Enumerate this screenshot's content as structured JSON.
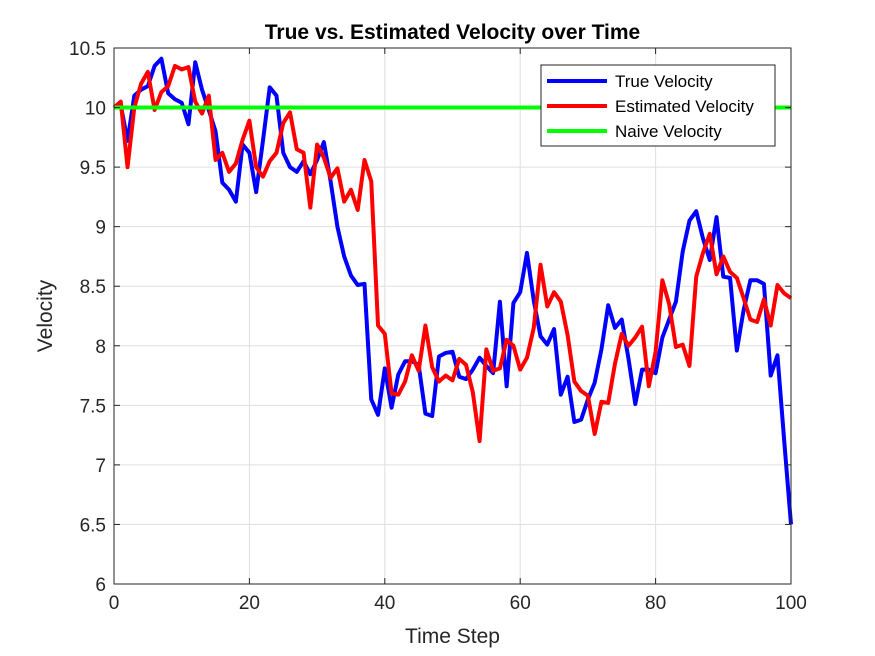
{
  "chart_data": {
    "type": "line",
    "title": "True vs. Estimated Velocity over Time",
    "xlabel": "Time Step",
    "ylabel": "Velocity",
    "xlim": [
      0,
      100
    ],
    "ylim": [
      6,
      10.5
    ],
    "x_ticks": [
      "0",
      "20",
      "40",
      "60",
      "80",
      "100"
    ],
    "y_ticks": [
      "6",
      "6.5",
      "7",
      "7.5",
      "8",
      "8.5",
      "9",
      "9.5",
      "10",
      "10.5"
    ],
    "grid": true,
    "legend_position": "top-right",
    "series": [
      {
        "name": "True Velocity",
        "color": "#0000ff",
        "x": [
          0,
          1,
          2,
          3,
          4,
          5,
          6,
          7,
          8,
          9,
          10,
          11,
          12,
          13,
          14,
          15,
          16,
          17,
          18,
          19,
          20,
          21,
          22,
          23,
          24,
          25,
          26,
          27,
          28,
          29,
          30,
          31,
          32,
          33,
          34,
          35,
          36,
          37,
          38,
          39,
          40,
          41,
          42,
          43,
          44,
          45,
          46,
          47,
          48,
          49,
          50,
          51,
          52,
          53,
          54,
          55,
          56,
          57,
          58,
          59,
          60,
          61,
          62,
          63,
          64,
          65,
          66,
          67,
          68,
          69,
          70,
          71,
          72,
          73,
          74,
          75,
          76,
          77,
          78,
          79,
          80,
          81,
          82,
          83,
          84,
          85,
          86,
          87,
          88,
          89,
          90,
          91,
          92,
          93,
          94,
          95,
          96,
          97,
          98,
          99,
          100
        ],
        "y": [
          10.0,
          10.02,
          9.72,
          10.1,
          10.15,
          10.18,
          10.35,
          10.41,
          10.12,
          10.07,
          10.04,
          9.86,
          10.38,
          10.15,
          9.98,
          9.8,
          9.37,
          9.31,
          9.21,
          9.69,
          9.62,
          9.29,
          9.72,
          10.17,
          10.1,
          9.62,
          9.5,
          9.46,
          9.55,
          9.44,
          9.56,
          9.71,
          9.38,
          9.0,
          8.75,
          8.59,
          8.51,
          8.52,
          7.55,
          7.42,
          7.81,
          7.48,
          7.76,
          7.87,
          7.87,
          7.84,
          7.43,
          7.41,
          7.91,
          7.94,
          7.95,
          7.74,
          7.72,
          7.8,
          7.9,
          7.83,
          7.77,
          8.37,
          7.66,
          8.36,
          8.45,
          8.78,
          8.38,
          8.08,
          8.01,
          8.14,
          7.59,
          7.74,
          7.36,
          7.38,
          7.55,
          7.69,
          7.97,
          8.34,
          8.15,
          8.22,
          7.89,
          7.51,
          7.8,
          7.8,
          7.77,
          8.07,
          8.22,
          8.37,
          8.79,
          9.05,
          9.13,
          8.9,
          8.72,
          9.08,
          8.58,
          8.57,
          7.96,
          8.3,
          8.55,
          8.55,
          8.52,
          7.75,
          7.92,
          7.2,
          6.5
        ]
      },
      {
        "name": "Estimated Velocity",
        "color": "#ff0000",
        "x": [
          0,
          1,
          2,
          3,
          4,
          5,
          6,
          7,
          8,
          9,
          10,
          11,
          12,
          13,
          14,
          15,
          16,
          17,
          18,
          19,
          20,
          21,
          22,
          23,
          24,
          25,
          26,
          27,
          28,
          29,
          30,
          31,
          32,
          33,
          34,
          35,
          36,
          37,
          38,
          39,
          40,
          41,
          42,
          43,
          44,
          45,
          46,
          47,
          48,
          49,
          50,
          51,
          52,
          53,
          54,
          55,
          56,
          57,
          58,
          59,
          60,
          61,
          62,
          63,
          64,
          65,
          66,
          67,
          68,
          69,
          70,
          71,
          72,
          73,
          74,
          75,
          76,
          77,
          78,
          79,
          80,
          81,
          82,
          83,
          84,
          85,
          86,
          87,
          88,
          89,
          90,
          91,
          92,
          93,
          94,
          95,
          96,
          97,
          98,
          99,
          100
        ],
        "y": [
          10.0,
          10.05,
          9.5,
          10.0,
          10.2,
          10.3,
          9.98,
          10.13,
          10.18,
          10.35,
          10.32,
          10.34,
          10.05,
          9.95,
          10.1,
          9.56,
          9.62,
          9.46,
          9.53,
          9.73,
          9.89,
          9.5,
          9.42,
          9.55,
          9.62,
          9.87,
          9.96,
          9.65,
          9.62,
          9.16,
          9.69,
          9.58,
          9.41,
          9.49,
          9.21,
          9.31,
          9.14,
          9.56,
          9.38,
          8.17,
          8.1,
          7.6,
          7.59,
          7.7,
          7.92,
          7.79,
          8.17,
          7.82,
          7.7,
          7.75,
          7.71,
          7.89,
          7.84,
          7.61,
          7.2,
          7.97,
          7.79,
          7.81,
          8.05,
          8.0,
          7.8,
          7.9,
          8.15,
          8.68,
          8.33,
          8.45,
          8.37,
          8.09,
          7.7,
          7.62,
          7.58,
          7.26,
          7.53,
          7.52,
          7.85,
          8.1,
          8.0,
          8.07,
          8.16,
          7.66,
          7.95,
          8.55,
          8.35,
          7.99,
          8.01,
          7.83,
          8.58,
          8.78,
          8.94,
          8.6,
          8.75,
          8.62,
          8.57,
          8.4,
          8.22,
          8.2,
          8.39,
          8.17,
          8.51,
          8.44,
          8.4
        ]
      },
      {
        "name": "Naive Velocity",
        "color": "#00ff00",
        "x": [
          0,
          100
        ],
        "y": [
          10.0,
          10.0
        ]
      }
    ]
  }
}
